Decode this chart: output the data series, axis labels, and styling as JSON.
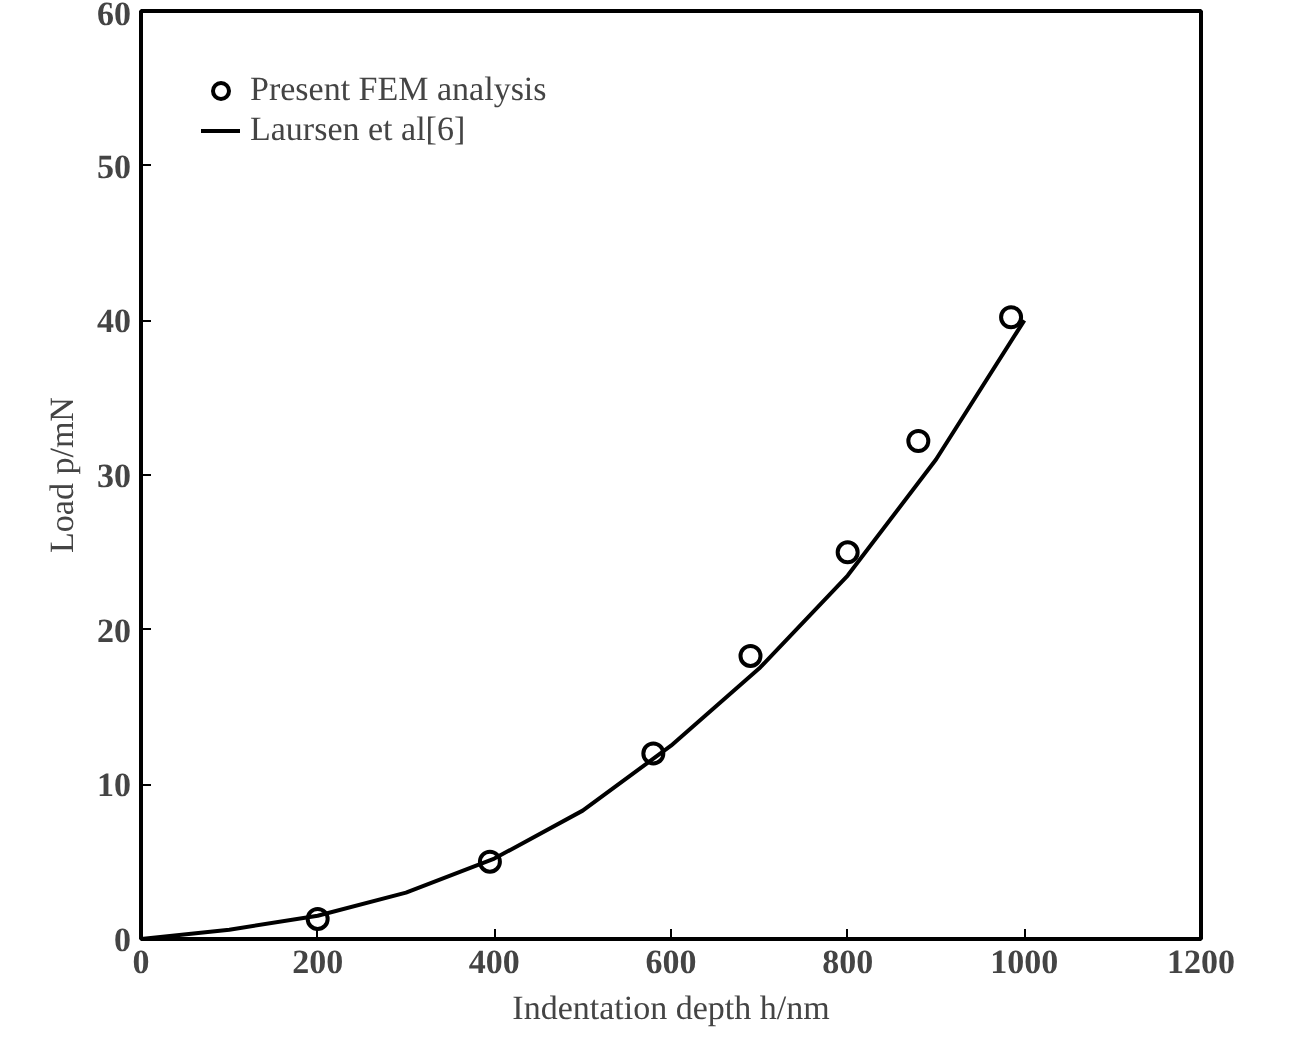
{
  "chart_data": {
    "type": "scatter",
    "xlabel": "Indentation depth h/nm",
    "ylabel": "Load p/mN",
    "xlim": [
      0,
      1200
    ],
    "ylim": [
      0,
      60
    ],
    "xticks": [
      0,
      200,
      400,
      600,
      800,
      1000,
      1200
    ],
    "yticks": [
      0,
      10,
      20,
      30,
      40,
      50,
      60
    ],
    "grid": false,
    "legend": "top left",
    "series": [
      {
        "name": "Present FEM analysis",
        "marker": "circle",
        "color": "#000000",
        "x": [
          200,
          395,
          580,
          690,
          800,
          880,
          985
        ],
        "values": [
          1.3,
          5,
          12,
          18.3,
          25,
          32.2,
          40.2
        ]
      },
      {
        "name": "Laursen et al[6]",
        "type": "line",
        "line_style": "solid",
        "color": "#000000",
        "x": [
          0,
          100,
          200,
          300,
          400,
          500,
          600,
          700,
          800,
          900,
          1000
        ],
        "values": [
          0,
          0.6,
          1.5,
          3,
          5.2,
          8.3,
          12.5,
          17.5,
          23.5,
          31,
          40
        ]
      }
    ]
  }
}
